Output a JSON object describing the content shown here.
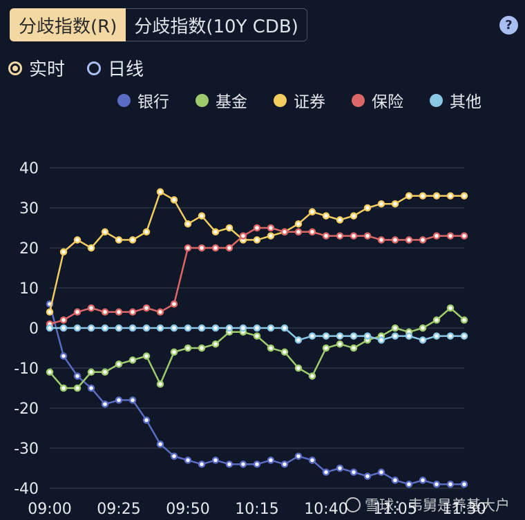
{
  "tabs": [
    {
      "label": "分歧指数(R)",
      "active": true
    },
    {
      "label": "分歧指数(10Y CDB)",
      "active": false
    }
  ],
  "help_label": "?",
  "radios": [
    {
      "label": "实时",
      "checked": true
    },
    {
      "label": "日线",
      "checked": false
    }
  ],
  "watermark": "雪球：韦舅是养基大户",
  "chart_data": {
    "type": "line",
    "x": [
      "09:00",
      "09:05",
      "09:10",
      "09:15",
      "09:20",
      "09:25",
      "09:30",
      "09:35",
      "09:40",
      "09:45",
      "09:50",
      "09:55",
      "10:00",
      "10:05",
      "10:10",
      "10:15",
      "10:20",
      "10:25",
      "10:30",
      "10:35",
      "10:40",
      "10:45",
      "10:50",
      "10:55",
      "11:00",
      "11:05",
      "11:10",
      "11:15",
      "11:20",
      "11:25",
      "11:30"
    ],
    "x_tick_labels": [
      "09:00",
      "09:25",
      "09:50",
      "10:15",
      "10:40",
      "11:05",
      "11:30"
    ],
    "ylim": [
      -40,
      40
    ],
    "y_ticks": [
      40,
      30,
      20,
      10,
      0,
      -10,
      -20,
      -30,
      -40
    ],
    "grid": true,
    "legend_position": "top-right",
    "series": [
      {
        "name": "银行",
        "color": "#5b6cc4",
        "values": [
          6,
          -7,
          -12,
          -15,
          -19,
          -18,
          -18,
          -23,
          -29,
          -32,
          -33,
          -34,
          -33,
          -34,
          -34,
          -34,
          -33,
          -34,
          -32,
          -33,
          -36,
          -35,
          -36,
          -37,
          -36,
          -38,
          -39,
          -38,
          -39,
          -39,
          -39
        ]
      },
      {
        "name": "基金",
        "color": "#9fcb6d",
        "values": [
          -11,
          -15,
          -15,
          -11,
          -11,
          -9,
          -8,
          -7,
          -14,
          -6,
          -5,
          -5,
          -4,
          -1,
          -1,
          -2,
          -5,
          -6,
          -10,
          -12,
          -5,
          -4,
          -5,
          -3,
          -2,
          0,
          -1,
          0,
          2,
          5,
          2
        ]
      },
      {
        "name": "证券",
        "color": "#f3cd5f",
        "values": [
          4,
          19,
          22,
          20,
          24,
          22,
          22,
          24,
          34,
          32,
          26,
          28,
          24,
          25,
          22,
          22,
          23,
          24,
          26,
          29,
          28,
          27,
          28,
          30,
          31,
          31,
          33,
          33,
          33,
          33,
          33
        ]
      },
      {
        "name": "保险",
        "color": "#dd6666",
        "values": [
          1,
          2,
          4,
          5,
          4,
          4,
          4,
          5,
          4,
          6,
          20,
          20,
          20,
          20,
          23,
          25,
          25,
          24,
          24,
          24,
          23,
          23,
          23,
          23,
          22,
          22,
          22,
          22,
          23,
          23,
          23
        ]
      },
      {
        "name": "其他",
        "color": "#8ac8e6",
        "values": [
          0,
          0,
          0,
          0,
          0,
          0,
          0,
          0,
          0,
          0,
          0,
          0,
          0,
          0,
          0,
          0,
          0,
          0,
          -3,
          -2,
          -2,
          -2,
          -2,
          -2,
          -3,
          -2,
          -2,
          -3,
          -2,
          -2,
          -2
        ]
      }
    ]
  }
}
